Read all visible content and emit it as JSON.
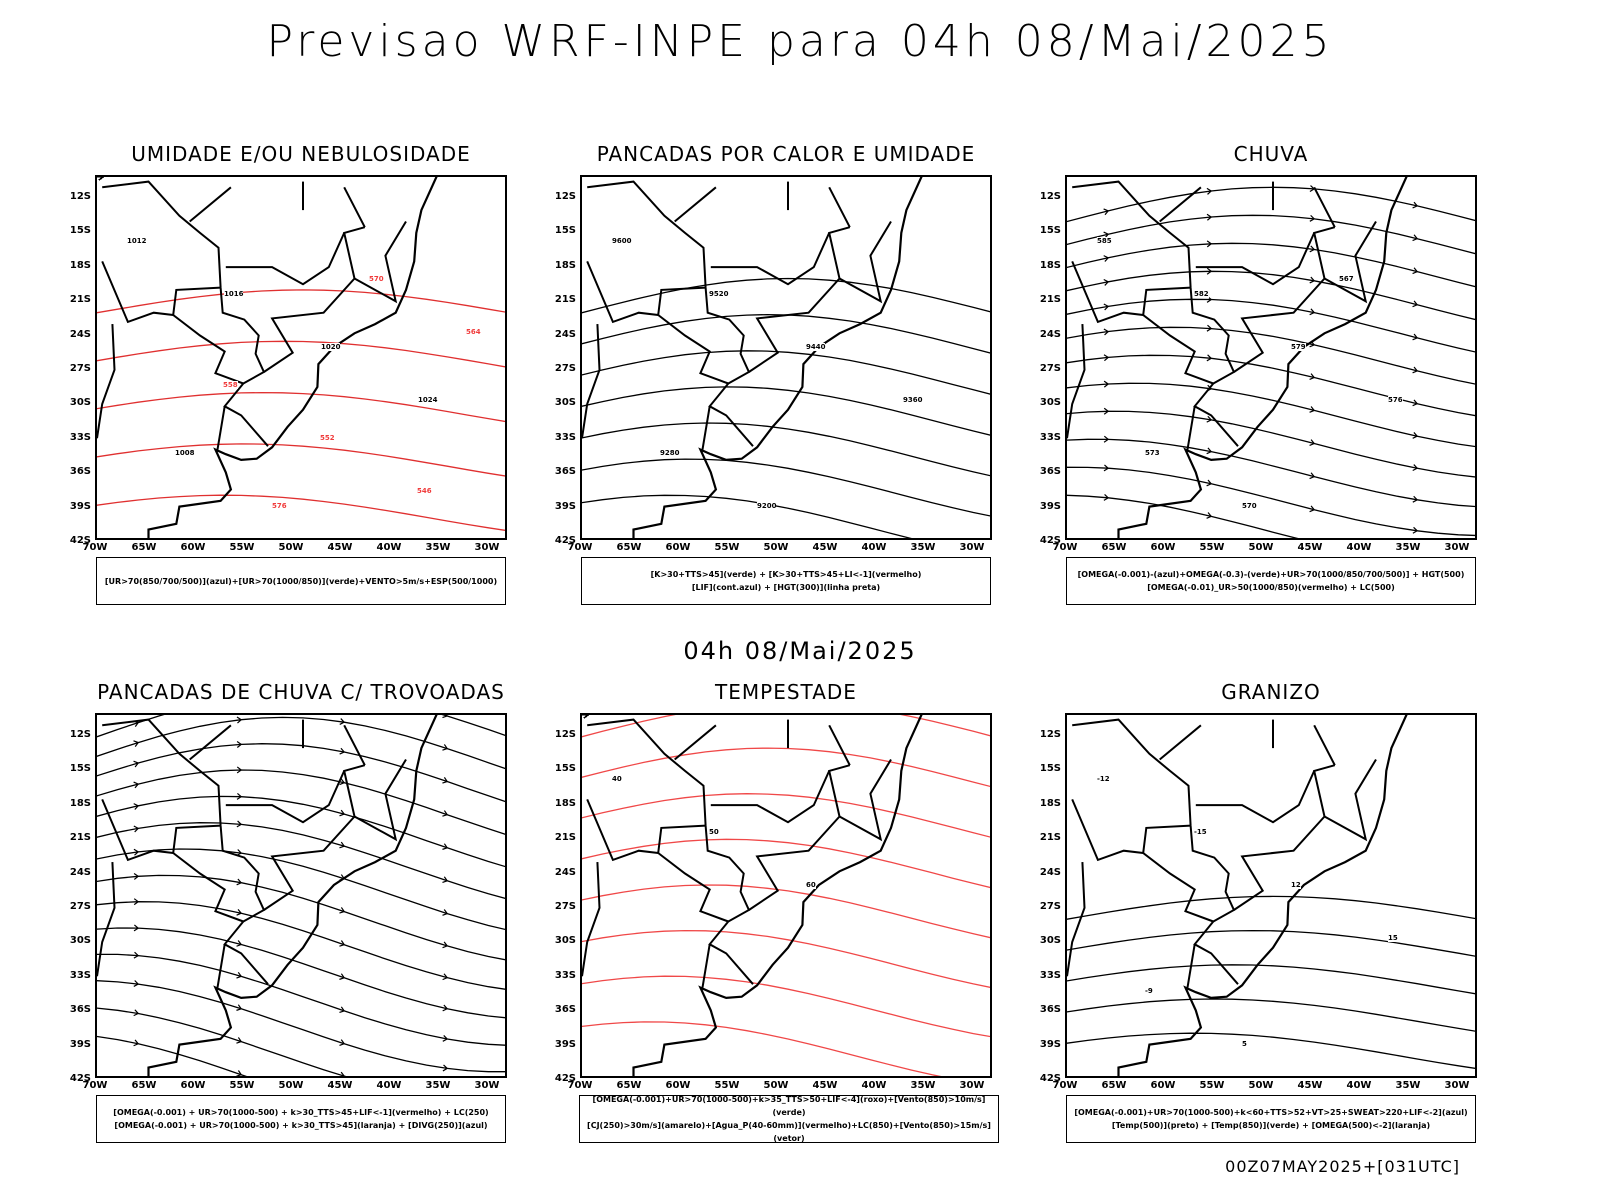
{
  "header": {
    "title": "Previsao WRF-INPE  para 04h 08/Mai/2025",
    "subtitle": "04h 08/Mai/2025"
  },
  "axes": {
    "lat_ticks": [
      "12S",
      "15S",
      "18S",
      "21S",
      "24S",
      "27S",
      "30S",
      "33S",
      "36S",
      "39S",
      "42S"
    ],
    "lon_ticks": [
      "70W",
      "65W",
      "60W",
      "55W",
      "50W",
      "45W",
      "40W",
      "35W",
      "30W"
    ]
  },
  "panels": [
    {
      "title": "UMIDADE E/OU NEBULOSIDADE",
      "legend": [
        "[UR>70(850/700/500)](azul)+[UR>70(1000/850)](verde)+VENTO>5m/s+ESP(500/1000)"
      ],
      "labels": [
        "1012",
        "1016",
        "1020",
        "1024",
        "1008",
        "576",
        "570",
        "564",
        "558",
        "552",
        "546"
      ]
    },
    {
      "title": "PANCADAS POR CALOR E UMIDADE",
      "legend": [
        "[K>30+TTS>45](verde) + [K>30+TTS>45+LI<-1](vermelho)",
        "[LIF](cont.azul) + [HGT(300)](linha preta)"
      ],
      "labels": [
        "9600",
        "9520",
        "9440",
        "9360",
        "9280",
        "9200"
      ]
    },
    {
      "title": "CHUVA",
      "legend": [
        "[OMEGA(-0.001)-(azul)+OMEGA(-0.3)-(verde)+UR>70(1000/850/700/500)] + HGT(500)",
        "[OMEGA(-0.01)_UR>50(1000/850)(vermelho) + LC(500)"
      ],
      "labels": [
        "585",
        "582",
        "579",
        "576",
        "573",
        "570",
        "567"
      ]
    },
    {
      "title": "PANCADAS DE CHUVA C/ TROVOADAS",
      "legend": [
        "[OMEGA(-0.001) + UR>70(1000-500) + k>30_TTS>45+LIF<-1](vermelho) + LC(250)",
        "[OMEGA(-0.001) + UR>70(1000-500) + k>30_TTS>45](laranja) + [DIVG(250)](azul)"
      ],
      "labels": []
    },
    {
      "title": "TEMPESTADE",
      "legend": [
        "[OMEGA(-0.001)+UR>70(1000-500)+k>35_TTS>50+LIF<-4](roxo)+[Vento(850)>10m/s](verde)",
        "[CJ(250)>30m/s](amarelo)+[Agua_P(40-60mm)](vermelho)+LC(850)+[Vento(850)>15m/s](vetor)"
      ],
      "labels": [
        "40",
        "50",
        "60"
      ]
    },
    {
      "title": "GRANIZO",
      "legend": [
        "[OMEGA(-0.001)+UR>70(1000-500)+k<60+TTS>52+VT>25+SWEAT>220+LIF<-2](azul)",
        "[Temp(500)](preto) + [Temp(850)](verde) + [OMEGA(500)<-2](laranja)"
      ],
      "labels": [
        "-12",
        "-15",
        "12",
        "15",
        "-9",
        "5"
      ]
    }
  ],
  "footer": "00Z07MAY2025+[031UTC]",
  "colors": {
    "red": "#f03c3c",
    "green": "#00c800",
    "blue": "#3c50f0",
    "lavender": "#a8a8f0",
    "darkteal": "#1e4e4e",
    "yellow": "#e6dc32",
    "orange": "#f08c28"
  }
}
